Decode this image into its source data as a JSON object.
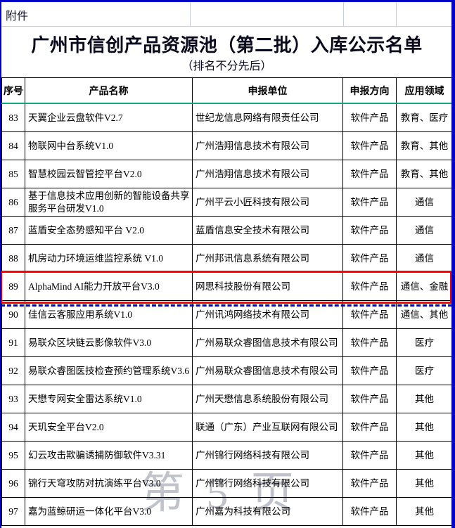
{
  "page": {
    "attachment_label": "附件",
    "title": "广州市信创产品资源池（第二批）入库公示名单",
    "subtitle": "（排名不分先后）",
    "watermark": "第 5 页"
  },
  "colors": {
    "frame_blue": "#0000c8",
    "highlight_red": "#ff0000",
    "header_underline_green": "#11a87c",
    "gridline_gray": "#c7cdd9",
    "watermark_gray": "#82869a"
  },
  "table": {
    "headers": [
      "序号",
      "产品名称",
      "申报单位",
      "申报方向",
      "应用领域"
    ],
    "rows": [
      {
        "no": "83",
        "product": "天翼企业云盘软件V2.7",
        "company": "世纪龙信息网络有限责任公司",
        "direction": "软件产品",
        "field": "教育、医疗",
        "highlighted": false
      },
      {
        "no": "84",
        "product": "物联网中台系统V1.0",
        "company": "广州浩翔信息技术有限公司",
        "direction": "软件产品",
        "field": "教育、其他",
        "highlighted": false
      },
      {
        "no": "85",
        "product": "智慧校园云智管控平台V2.0",
        "company": "广州浩翔信息技术有限公司",
        "direction": "软件产品",
        "field": "教育、其他",
        "highlighted": false
      },
      {
        "no": "86",
        "product": "基于信息技术应用创新的智能设备共享服务平台研发V1.0",
        "company": "广州平云小匠科技有限公司",
        "direction": "软件产品",
        "field": "通信",
        "highlighted": false
      },
      {
        "no": "87",
        "product": "蓝盾安全态势感知平台 V2.0",
        "company": "蓝盾信息安全技术有限公司",
        "direction": "软件产品",
        "field": "通信",
        "highlighted": false
      },
      {
        "no": "88",
        "product": "机房动力环境运维监控系统 V1.0",
        "company": "广州邦讯信息系统有限公司",
        "direction": "软件产品",
        "field": "通信",
        "highlighted": false
      },
      {
        "no": "89",
        "product": "AlphaMind AI能力开放平台V3.0",
        "company": "网思科技股份有限公司",
        "direction": "软件产品",
        "field": "通信、金融",
        "highlighted": true
      },
      {
        "no": "90",
        "product": "佳信云客服应用系统V1.0",
        "company": "广州讯鸿网络技术有限公司",
        "direction": "软件产品",
        "field": "通信、其他",
        "highlighted": false
      },
      {
        "no": "91",
        "product": "易联众区块链云影像软件V3.0",
        "company": "广州易联众睿图信息技术有限公司",
        "direction": "软件产品",
        "field": "医疗",
        "highlighted": false
      },
      {
        "no": "92",
        "product": "易联众睿图医技检查预约管理系统V3.6",
        "company": "广州易联众睿图信息技术有限公司",
        "direction": "软件产品",
        "field": "医疗",
        "highlighted": false
      },
      {
        "no": "93",
        "product": "天懋专网安全雷达系统V1.0",
        "company": "广州天懋信息系统股份有限公司",
        "direction": "软件产品",
        "field": "其他",
        "highlighted": false
      },
      {
        "no": "94",
        "product": "天玑安全平台V2.0",
        "company": "联通（广东）产业互联网有限公司",
        "direction": "软件产品",
        "field": "其他",
        "highlighted": false
      },
      {
        "no": "95",
        "product": "幻云攻击欺骗诱捕防御软件V3.31",
        "company": "广州锦行网络科技有限公司",
        "direction": "软件产品",
        "field": "其他",
        "highlighted": false
      },
      {
        "no": "96",
        "product": "锦行天穹攻防对抗演练平台V3.0",
        "company": "广州锦行网络科技有限公司",
        "direction": "软件产品",
        "field": "其他",
        "highlighted": false
      },
      {
        "no": "97",
        "product": "嘉为蓝鲸研运一体化平台V3.0",
        "company": "广州嘉为科技有限公司",
        "direction": "软件产品",
        "field": "其他",
        "highlighted": false
      }
    ]
  }
}
